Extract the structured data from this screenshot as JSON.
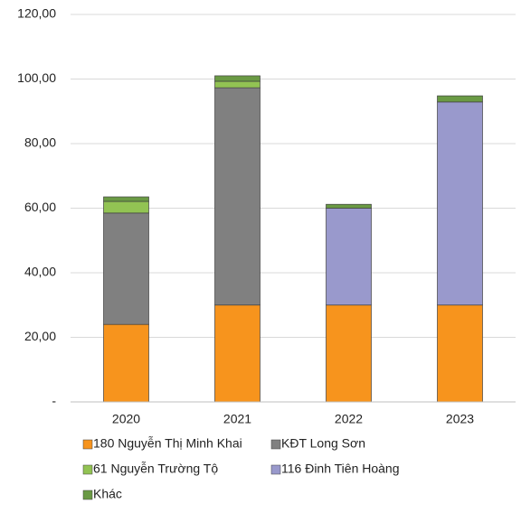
{
  "chart_data": {
    "type": "stacked_bar",
    "categories": [
      "2020",
      "2021",
      "2022",
      "2023"
    ],
    "series": [
      {
        "name": "180 Nguyễn Thị Minh Khai",
        "color": "#f7941d",
        "values": [
          24,
          30,
          30,
          30
        ]
      },
      {
        "name": "KĐT Long Sơn",
        "color": "#808080",
        "values": [
          34.5,
          67.3,
          null,
          null
        ]
      },
      {
        "name": "61 Nguyễn Trường Tộ",
        "color": "#92c353",
        "values": [
          3.6,
          2,
          null,
          null
        ]
      },
      {
        "name": "116 Đinh Tiên Hoàng",
        "color": "#9999cc",
        "values": [
          null,
          null,
          30,
          62.9
        ]
      },
      {
        "name": "Khác",
        "color": "#6a9a44",
        "values": [
          1.4,
          1.7,
          1.2,
          1.9
        ]
      }
    ],
    "ylim": [
      0,
      120
    ],
    "yticks": [
      {
        "value": 0,
        "label": "-"
      },
      {
        "value": 20,
        "label": "20,00"
      },
      {
        "value": 40,
        "label": "40,00"
      },
      {
        "value": 60,
        "label": "60,00"
      },
      {
        "value": 80,
        "label": "80,00"
      },
      {
        "value": 100,
        "label": "100,00"
      },
      {
        "value": 120,
        "label": "120,00"
      }
    ],
    "grid": true
  }
}
